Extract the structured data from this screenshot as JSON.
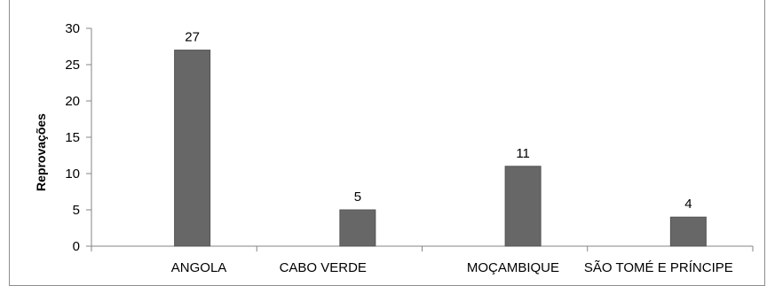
{
  "chart_data": {
    "type": "bar",
    "title": "",
    "xlabel": "",
    "ylabel": "Reprovações",
    "categories": [
      "ANGOLA",
      "CABO VERDE",
      "MOÇAMBIQUE",
      "SÃO TOMÉ E PRÍNCIPE"
    ],
    "values": [
      27,
      5,
      11,
      4
    ],
    "data_labels": [
      "27",
      "5",
      "11",
      "4"
    ],
    "ylim": [
      0,
      30
    ],
    "yticks": [
      0,
      5,
      10,
      15,
      20,
      25,
      30
    ],
    "ytick_labels": [
      "0",
      "5",
      "10",
      "15",
      "20",
      "25",
      "30"
    ],
    "grid": false,
    "legend": "none",
    "colors": {
      "bar": "#676767",
      "bar_stroke": "#545454",
      "axis": "#868686"
    }
  }
}
